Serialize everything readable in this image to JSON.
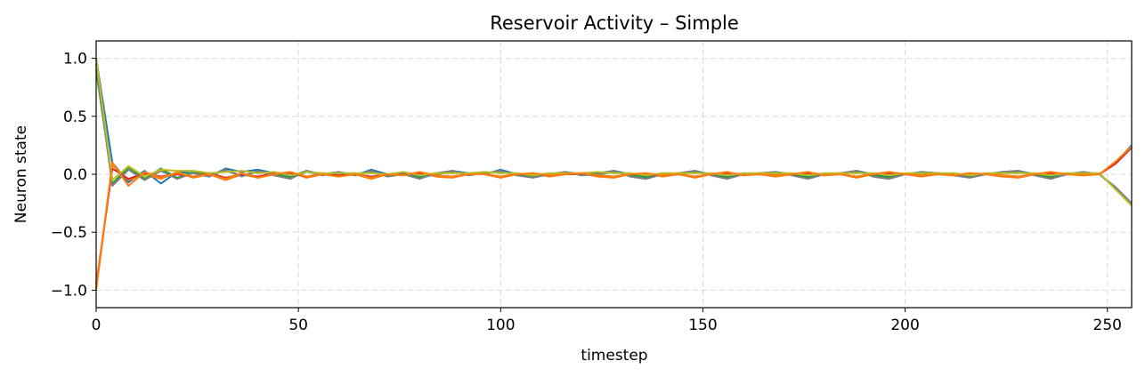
{
  "chart_data": {
    "type": "line",
    "title": "Reservoir Activity – Simple",
    "xlabel": "timestep",
    "ylabel": "Neuron state",
    "xlim": [
      0,
      256
    ],
    "ylim": [
      -1.15,
      1.15
    ],
    "xticks": [
      0,
      50,
      100,
      150,
      200,
      250
    ],
    "yticks": [
      1.0,
      0.5,
      0.0,
      -0.5,
      -1.0
    ],
    "xtick_labels": [
      "0",
      "50",
      "100",
      "150",
      "200",
      "250"
    ],
    "ytick_labels": [
      "1.0",
      "0.5",
      "0.0",
      "−0.5",
      "−1.0"
    ],
    "grid": true,
    "x": [
      0,
      4,
      8,
      12,
      16,
      20,
      24,
      28,
      32,
      36,
      40,
      44,
      48,
      52,
      56,
      60,
      64,
      68,
      72,
      76,
      80,
      84,
      88,
      92,
      96,
      100,
      104,
      108,
      112,
      116,
      120,
      124,
      128,
      132,
      136,
      140,
      144,
      148,
      152,
      156,
      160,
      164,
      168,
      172,
      176,
      180,
      184,
      188,
      192,
      196,
      200,
      204,
      208,
      212,
      216,
      220,
      224,
      228,
      232,
      236,
      240,
      244,
      248,
      252,
      256
    ],
    "series": [
      {
        "color": "#1f77b4",
        "values": [
          1.0,
          0.1,
          -0.07,
          0.03,
          -0.08,
          0.02,
          0.01,
          -0.02,
          0.05,
          0.02,
          0.04,
          0.01,
          -0.02,
          0.03,
          0.0,
          0.02,
          -0.01,
          0.04,
          0.0,
          0.01,
          -0.02,
          0.0,
          0.03,
          0.01,
          0.0,
          0.04,
          0.0,
          -0.01,
          0.0,
          0.02,
          0.0,
          0.01,
          0.03,
          0.0,
          -0.02,
          0.0,
          0.01,
          0.03,
          0.0,
          -0.02,
          0.0,
          0.01,
          0.02,
          0.0,
          -0.02,
          0.0,
          0.01,
          0.03,
          0.0,
          -0.02,
          0.0,
          0.02,
          0.01,
          0.0,
          -0.01,
          0.0,
          0.02,
          0.03,
          0.0,
          -0.02,
          0.0,
          0.02,
          0.0,
          0.1,
          0.25
        ]
      },
      {
        "color": "#ff7f0e",
        "values": [
          -1.0,
          0.08,
          -0.05,
          0.0,
          -0.04,
          0.02,
          -0.03,
          0.0,
          -0.05,
          0.0,
          -0.03,
          0.0,
          0.02,
          -0.03,
          0.0,
          -0.02,
          0.0,
          -0.04,
          0.0,
          -0.01,
          0.02,
          -0.02,
          -0.03,
          0.0,
          0.0,
          -0.03,
          0.0,
          0.01,
          -0.02,
          0.0,
          0.01,
          -0.02,
          -0.03,
          0.0,
          0.01,
          -0.02,
          0.0,
          -0.03,
          0.0,
          0.02,
          -0.01,
          0.0,
          -0.02,
          0.0,
          0.02,
          -0.01,
          0.0,
          -0.03,
          0.0,
          0.02,
          0.0,
          -0.02,
          0.0,
          -0.01,
          0.01,
          0.0,
          -0.02,
          -0.03,
          0.0,
          0.02,
          0.0,
          -0.01,
          0.0,
          0.1,
          0.24
        ]
      },
      {
        "color": "#2ca02c",
        "values": [
          0.9,
          -0.08,
          0.06,
          -0.04,
          0.05,
          -0.03,
          0.02,
          0.0,
          0.03,
          -0.01,
          0.02,
          0.0,
          -0.03,
          0.02,
          0.0,
          0.01,
          0.0,
          0.02,
          -0.01,
          0.0,
          -0.03,
          0.0,
          0.02,
          0.0,
          0.01,
          0.02,
          0.0,
          -0.02,
          0.0,
          0.01,
          0.0,
          0.0,
          0.02,
          -0.01,
          -0.03,
          0.0,
          0.0,
          0.02,
          0.0,
          -0.03,
          0.0,
          0.0,
          0.01,
          0.0,
          -0.03,
          0.0,
          0.0,
          0.02,
          -0.01,
          -0.03,
          0.0,
          0.01,
          0.0,
          0.0,
          -0.02,
          0.0,
          0.01,
          0.02,
          0.0,
          -0.03,
          0.0,
          0.01,
          0.0,
          -0.12,
          -0.26
        ]
      },
      {
        "color": "#d62728",
        "values": [
          -0.95,
          0.05,
          -0.04,
          0.01,
          -0.02,
          0.0,
          -0.02,
          0.01,
          -0.03,
          0.0,
          -0.02,
          0.01,
          0.01,
          -0.02,
          0.0,
          -0.01,
          0.0,
          -0.02,
          0.0,
          0.0,
          0.01,
          -0.01,
          -0.02,
          0.0,
          0.0,
          -0.02,
          0.0,
          0.0,
          -0.01,
          0.0,
          0.0,
          -0.01,
          -0.02,
          0.0,
          0.0,
          -0.01,
          0.0,
          -0.02,
          0.0,
          0.01,
          0.0,
          0.0,
          -0.01,
          0.0,
          0.01,
          0.0,
          0.0,
          -0.02,
          0.0,
          0.01,
          0.0,
          -0.01,
          0.0,
          0.0,
          0.0,
          0.0,
          -0.01,
          -0.02,
          0.0,
          0.01,
          0.0,
          0.0,
          0.0,
          0.09,
          0.23
        ]
      },
      {
        "color": "#7f7f7f",
        "values": [
          0.95,
          -0.1,
          0.04,
          -0.05,
          0.03,
          -0.04,
          0.01,
          -0.02,
          0.04,
          -0.02,
          0.03,
          -0.01,
          -0.04,
          0.03,
          -0.01,
          0.02,
          -0.01,
          0.03,
          -0.02,
          0.0,
          -0.04,
          0.01,
          0.03,
          -0.01,
          0.01,
          0.03,
          -0.01,
          -0.03,
          0.0,
          0.02,
          -0.01,
          0.0,
          0.03,
          -0.02,
          -0.04,
          0.0,
          0.01,
          0.03,
          -0.01,
          -0.04,
          0.0,
          0.01,
          0.02,
          -0.01,
          -0.04,
          0.0,
          0.01,
          0.03,
          -0.02,
          -0.04,
          0.0,
          0.02,
          0.01,
          -0.01,
          -0.03,
          0.0,
          0.02,
          0.03,
          -0.01,
          -0.04,
          0.0,
          0.02,
          0.0,
          -0.11,
          -0.25
        ]
      },
      {
        "color": "#bcbd22",
        "values": [
          1.0,
          -0.05,
          0.07,
          -0.02,
          0.04,
          0.03,
          0.03,
          0.01,
          0.02,
          0.03,
          0.01,
          0.02,
          -0.01,
          0.02,
          0.01,
          0.01,
          0.01,
          0.01,
          0.0,
          0.02,
          -0.01,
          0.01,
          0.01,
          0.01,
          0.02,
          0.01,
          0.01,
          -0.01,
          0.01,
          0.01,
          0.01,
          0.02,
          0.01,
          0.01,
          -0.01,
          0.01,
          0.01,
          0.01,
          0.01,
          -0.01,
          0.01,
          0.01,
          0.01,
          0.01,
          -0.01,
          0.01,
          0.01,
          0.01,
          0.01,
          -0.01,
          0.01,
          0.01,
          0.01,
          0.01,
          -0.01,
          0.01,
          0.01,
          0.01,
          0.01,
          -0.01,
          0.01,
          0.01,
          0.01,
          -0.13,
          -0.27
        ]
      },
      {
        "color": "#ff7f0e",
        "values": [
          -0.98,
          0.1,
          -0.1,
          0.02,
          -0.03,
          0.01,
          -0.02,
          0.0,
          -0.04,
          0.01,
          -0.03,
          0.0,
          0.02,
          -0.02,
          0.0,
          -0.02,
          0.0,
          -0.03,
          0.0,
          -0.01,
          0.02,
          -0.01,
          -0.02,
          0.0,
          0.0,
          -0.02,
          0.0,
          0.01,
          -0.01,
          0.0,
          0.01,
          -0.01,
          -0.02,
          0.0,
          0.01,
          -0.01,
          0.0,
          -0.02,
          0.0,
          0.02,
          -0.01,
          0.0,
          -0.01,
          0.0,
          0.02,
          -0.01,
          0.0,
          -0.02,
          0.0,
          0.02,
          0.0,
          -0.01,
          0.0,
          -0.01,
          0.01,
          0.0,
          -0.01,
          -0.02,
          0.0,
          0.02,
          0.0,
          -0.01,
          0.0,
          0.11,
          0.24
        ]
      }
    ]
  }
}
